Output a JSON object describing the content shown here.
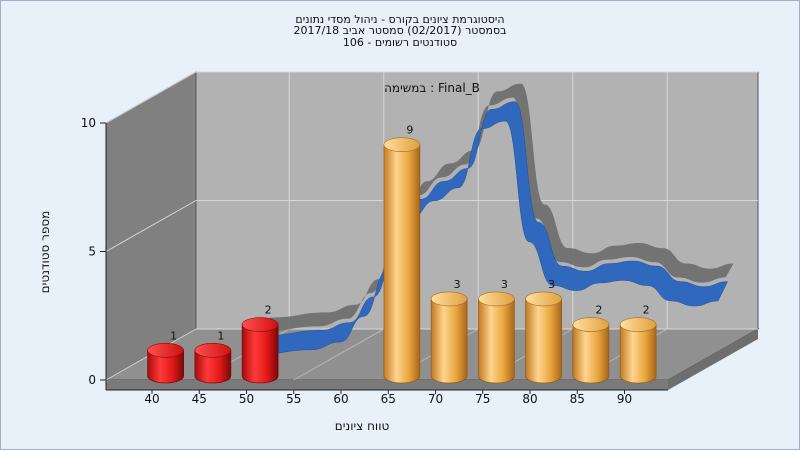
{
  "chart_data": {
    "type": "bar",
    "title_lines": [
      "היסטוגרמת ציונים בקורס - ניהול מסדי נתונים",
      "בסמסטר (02/2017) סמסטר אביב 2017/18",
      "סטודנטים רשומים - 106"
    ],
    "subtitle": "במשימה : Final_B",
    "xlabel": "טווח ציונים",
    "ylabel": "מספר סטודנטים",
    "x_ticks": [
      "40",
      "45",
      "50",
      "55",
      "60",
      "65",
      "70",
      "75",
      "80",
      "85",
      "90"
    ],
    "y_ticks": [
      "0",
      "5",
      "10"
    ],
    "ylim": [
      0,
      10
    ],
    "bars": [
      {
        "x": 42.5,
        "value": 1,
        "label": "1",
        "color": "#e01818"
      },
      {
        "x": 47.5,
        "value": 1,
        "label": "1",
        "color": "#e01818"
      },
      {
        "x": 52.5,
        "value": 2,
        "label": "2",
        "color": "#e01818"
      },
      {
        "x": 67.5,
        "value": 9,
        "label": "9",
        "color": "#e8a53c"
      },
      {
        "x": 72.5,
        "value": 3,
        "label": "3",
        "color": "#e8a53c"
      },
      {
        "x": 77.5,
        "value": 3,
        "label": "3",
        "color": "#e8a53c"
      },
      {
        "x": 82.5,
        "value": 3,
        "label": "3",
        "color": "#e8a53c"
      },
      {
        "x": 87.5,
        "value": 2,
        "label": "2",
        "color": "#e8a53c"
      },
      {
        "x": 92.5,
        "value": 2,
        "label": "2",
        "color": "#e8a53c"
      }
    ],
    "curve": {
      "type": "line",
      "color": "#2f68bd",
      "shadow_color": "#6b6b6b",
      "x": [
        46,
        52,
        55,
        57.5,
        60,
        62.5,
        65,
        67.5,
        70,
        72.5,
        75,
        77.5,
        80,
        82.5,
        85,
        87.5,
        90,
        92.5,
        95
      ],
      "y": [
        0.5,
        0.7,
        1.0,
        2.0,
        3.8,
        5.8,
        6.5,
        7.0,
        9.3,
        9.6,
        4.9,
        3.2,
        3.0,
        3.3,
        3.4,
        3.2,
        2.6,
        2.4,
        2.6
      ]
    },
    "colors": {
      "wall_back": "#b2b2b2",
      "wall_side": "#808080",
      "floor": "#909090",
      "grid": "#d8d8d8"
    },
    "grid": true,
    "legend": "none"
  }
}
